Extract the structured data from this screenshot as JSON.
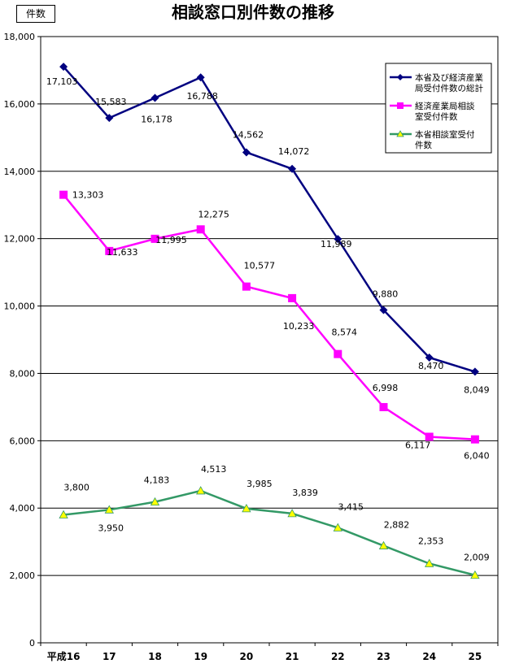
{
  "unit_label": "件数",
  "chart_data": {
    "type": "line",
    "title": "相談窓口別件数の推移",
    "xlabel": "",
    "ylabel": "",
    "categories": [
      "平成16",
      "17",
      "18",
      "19",
      "20",
      "21",
      "22",
      "23",
      "24",
      "25"
    ],
    "ylim": [
      0,
      18000
    ],
    "yticks": [
      "0",
      "2,000",
      "4,000",
      "6,000",
      "8,000",
      "10,000",
      "12,000",
      "14,000",
      "16,000",
      "18,000"
    ],
    "grid": true,
    "legend_position": "top-right",
    "series": [
      {
        "name": "本省及び経済産業局受付件数の総計",
        "legend_lines": [
          "本省及び経済産業",
          "局受付件数の総計"
        ],
        "color": "#000080",
        "marker": "diamond",
        "values": [
          17103,
          15583,
          16178,
          16788,
          14562,
          14072,
          11989,
          9880,
          8470,
          8049
        ],
        "labels": [
          "17,103",
          "15,583",
          "16,178",
          "16,788",
          "14,562",
          "14,072",
          "11,989",
          "9,880",
          "8,470",
          "8,049"
        ]
      },
      {
        "name": "経済産業局相談室受付件数",
        "legend_lines": [
          "経済産業局相談",
          "室受付件数"
        ],
        "color": "#ff00ff",
        "marker": "square",
        "values": [
          13303,
          11633,
          11995,
          12275,
          10577,
          10233,
          8574,
          6998,
          6117,
          6040
        ],
        "labels": [
          "13,303",
          "11,633",
          "11,995",
          "12,275",
          "10,577",
          "10,233",
          "8,574",
          "6,998",
          "6,117",
          "6,040"
        ]
      },
      {
        "name": "本省相談室受付件数",
        "legend_lines": [
          "本省相談室受付",
          "件数"
        ],
        "color": "#339966",
        "marker": "triangle",
        "marker_color": "#ffff00",
        "values": [
          3800,
          3950,
          4183,
          4513,
          3985,
          3839,
          3415,
          2882,
          2353,
          2009
        ],
        "labels": [
          "3,800",
          "3,950",
          "4,183",
          "4,513",
          "3,985",
          "3,839",
          "3,415",
          "2,882",
          "2,353",
          "2,009"
        ]
      }
    ]
  }
}
